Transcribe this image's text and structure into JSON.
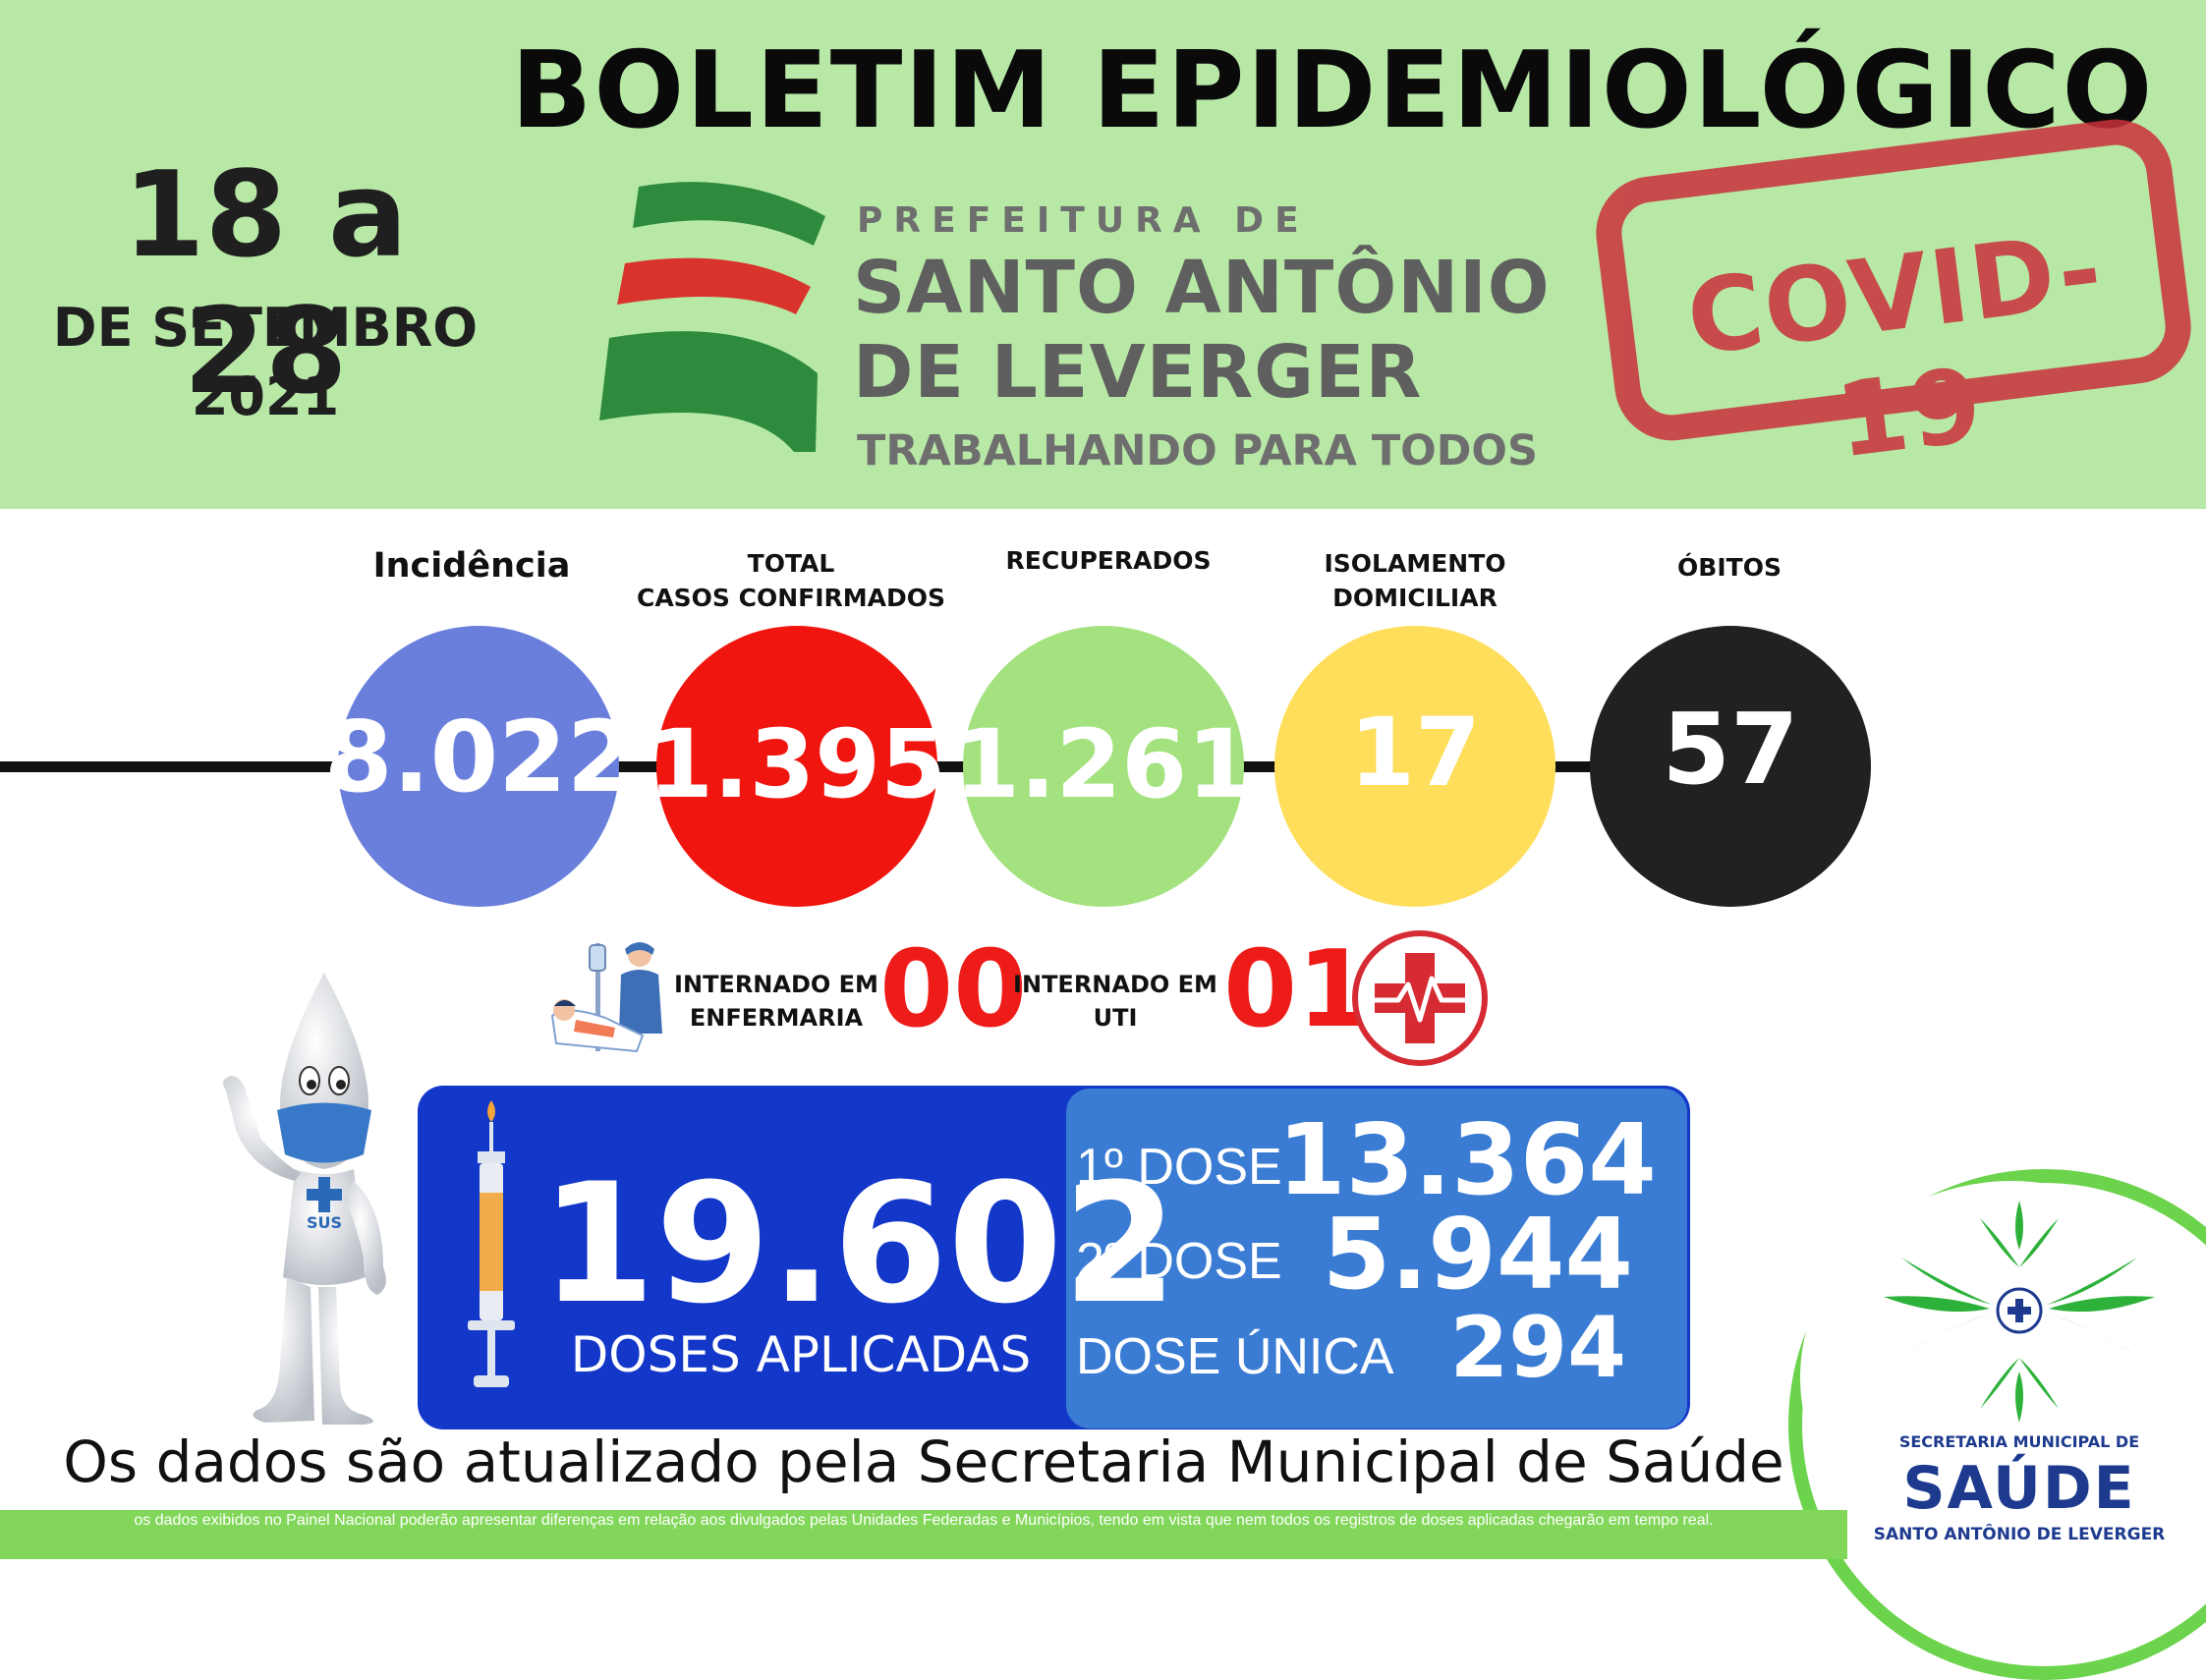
{
  "header": {
    "title": "BOLETIM EPIDEMIOLÓGICO",
    "date_range": "18 a 28",
    "date_month": "DE SETEMBRO",
    "date_year": "2021",
    "logo_prefix": "PREFEITURA DE",
    "logo_city_line1": "SANTO ANTÔNIO",
    "logo_city_line2": "DE LEVERGER",
    "logo_slogan": "TRABALHANDO PARA TODOS",
    "stamp_text": "COVID-19"
  },
  "stats": [
    {
      "label": "Incidência",
      "value": "8.022",
      "color": "#6a7fdc"
    },
    {
      "label": "TOTAL CASOS CONFIRMADOS",
      "label_line1": "TOTAL",
      "label_line2": "CASOS CONFIRMADOS",
      "value": "1.395",
      "color": "#f0150e"
    },
    {
      "label": "RECUPERADOS",
      "value": "1.261",
      "color": "#a3e27e"
    },
    {
      "label": "ISOLAMENTO DOMICILIAR",
      "label_line1": "ISOLAMENTO",
      "label_line2": "DOMICILIAR",
      "value": "17",
      "color": "#fede5a"
    },
    {
      "label": "ÓBITOS",
      "value": "57",
      "color": "#212121"
    }
  ],
  "hospitalization": {
    "ward_label_line1": "INTERNADO EM",
    "ward_label_line2": "ENFERMARIA",
    "ward_value": "00",
    "icu_label_line1": "INTERNADO EM",
    "icu_label_line2": "UTI",
    "icu_value": "01"
  },
  "vaccination": {
    "total_doses": "19.602",
    "total_label": "DOSES APLICADAS",
    "doses": [
      {
        "label": "1º DOSE",
        "value": "13.364"
      },
      {
        "label": "2º DOSE",
        "value": "5.944"
      },
      {
        "label": "DOSE ÚNICA",
        "value": "294"
      }
    ],
    "mascot_badge": "SUS"
  },
  "footer": {
    "main_text": "Os dados são atualizado pela Secretaria Municipal de Saúde",
    "note": "os dados exibidos no Painel Nacional poderão apresentar diferenças em relação aos divulgados pelas Unidades Federadas e Municípios, tendo em vista que nem todos os registros de doses aplicadas chegarão em tempo real."
  },
  "health_dept": {
    "line1": "SECRETARIA MUNICIPAL DE",
    "title": "SAÚDE",
    "city": "SANTO ANTÔNIO DE LEVERGER"
  },
  "colors": {
    "header_bg": "#b8e8a6",
    "vaccine_box": "#1338c9",
    "dose_box": "#3a7cd4",
    "alert_red": "#ed1c18",
    "footer_green": "#82d75a"
  }
}
